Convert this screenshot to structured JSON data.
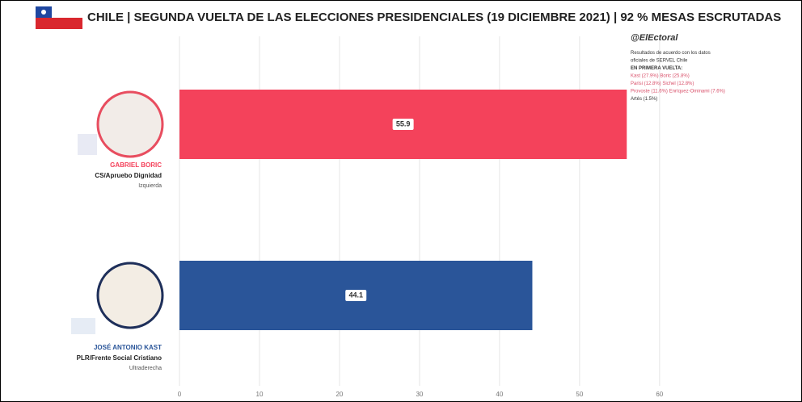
{
  "chart_data": {
    "type": "hbar",
    "title": "CHILE | SEGUNDA VUELTA DE LAS ELECCIONES PRESIDENCIALES (19 DICIEMBRE 2021) | 92 % MESAS ESCRUTADAS",
    "categories": [
      "GABRIEL BORIC",
      "JOSÉ ANTONIO KAST"
    ],
    "parties": [
      "CS/Apruebo Dignidad",
      "PLR/Frente Social Cristiano"
    ],
    "ideologies": [
      "Izquierda",
      "Ultraderecha"
    ],
    "values": [
      55.9,
      44.1
    ],
    "colors": [
      "#f4425b",
      "#2a5599"
    ],
    "xlim": [
      0,
      68
    ],
    "xticks": [
      0,
      10,
      20,
      30,
      40,
      50,
      60
    ],
    "grid": true,
    "annotations": [
      "@ElEctoral",
      "Resultados de acuerdo con los datos",
      "oficiales de SERVEL Chile",
      "EN PRIMERA VUELTA:",
      "Kast (27.9%) Boric (25.8%)",
      "Parisi (12.8%) Sichel (12.8%)",
      "Provoste (11.6%) Enríquez-Ominami (7.6%)",
      "Artés (1.5%)"
    ]
  }
}
